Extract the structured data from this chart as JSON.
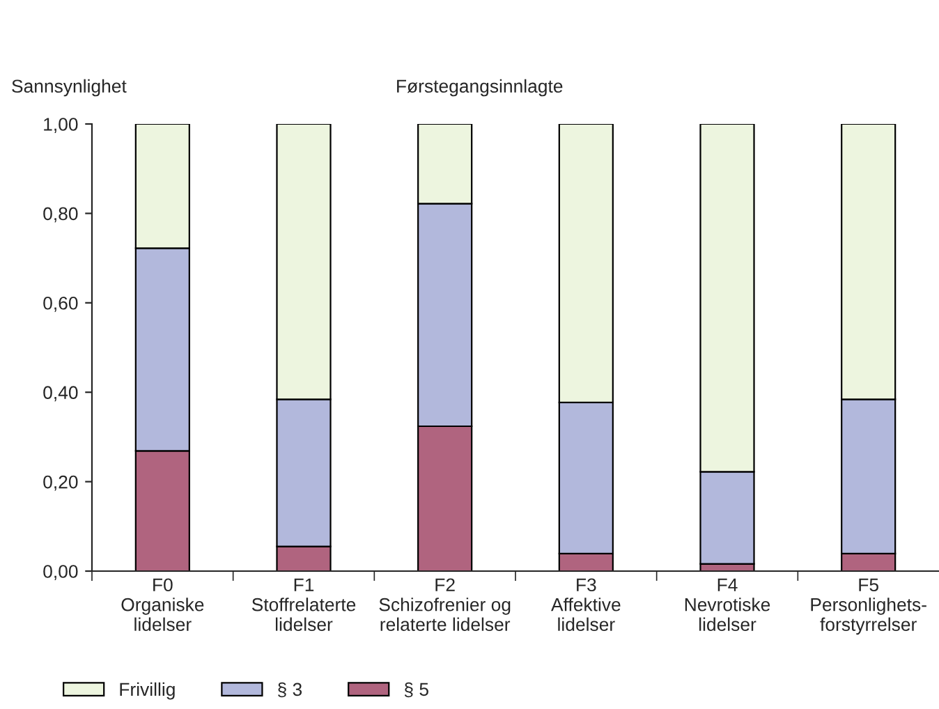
{
  "chart_data": {
    "type": "bar",
    "title": "Førstegangsinnlagte",
    "ylabel": "Sannsynlighet",
    "categories": [
      "F0\nOrganiske\nlidelser",
      "F1\nStoffrelaterte\nlidelser",
      "F2\nSchizofrenier og\nrelaterte lidelser",
      "F3\nAffektive\nlidelser",
      "F4\nNevrotiske\nlidelser",
      "F5\nPersonlighets-\nforstyrrelser"
    ],
    "stacked": true,
    "series": [
      {
        "name": "§ 5",
        "color": "#b0647f",
        "values": [
          0.269,
          0.055,
          0.324,
          0.039,
          0.016,
          0.039
        ]
      },
      {
        "name": "§ 3",
        "color": "#b2b8dc",
        "values": [
          0.453,
          0.329,
          0.498,
          0.338,
          0.206,
          0.345
        ]
      },
      {
        "name": "Frivillig",
        "color": "#edf5df",
        "values": [
          0.278,
          0.616,
          0.178,
          0.623,
          0.778,
          0.616
        ]
      }
    ],
    "ylim": [
      0,
      1
    ],
    "yticks": [
      {
        "value": 0,
        "label": "0,00"
      },
      {
        "value": 0.2,
        "label": "0,20"
      },
      {
        "value": 0.4,
        "label": "0,40"
      },
      {
        "value": 0.6,
        "label": "0,60"
      },
      {
        "value": 0.8,
        "label": "0,80"
      },
      {
        "value": 1,
        "label": "1,00"
      }
    ],
    "grid": false,
    "legend": "bottom"
  }
}
